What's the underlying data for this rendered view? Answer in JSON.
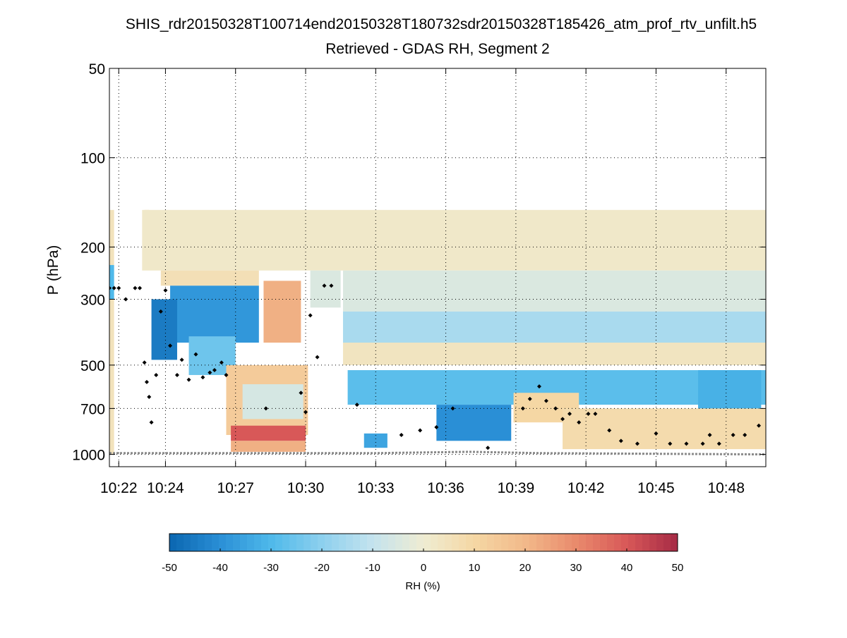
{
  "chart_data": {
    "type": "heatmap",
    "title": "SHIS_rdr20150328T100714end20150328T180732sdr20150328T185426_atm_prof_rtv_unfilt.h5",
    "subtitle": "Retrieved - GDAS RH, Segment 2",
    "xlabel": "",
    "ylabel": "P (hPa)",
    "y_scale": "log",
    "y_reversed": true,
    "ylim": [
      50,
      1100
    ],
    "y_ticks": [
      50,
      100,
      200,
      300,
      500,
      700,
      1000
    ],
    "y_tick_labels": [
      "50",
      "100",
      "200",
      "300",
      "500",
      "700",
      "1000"
    ],
    "x_unit": "minutes after 10:00",
    "xlim": [
      21.6,
      49.7
    ],
    "x_ticks": [
      22,
      24,
      27,
      30,
      33,
      36,
      39,
      42,
      45,
      48
    ],
    "x_tick_labels": [
      "10:22",
      "10:24",
      "10:27",
      "10:30",
      "10:33",
      "10:36",
      "10:39",
      "10:42",
      "10:45",
      "10:48"
    ],
    "grid": true,
    "colorbar": {
      "label": "RH (%)",
      "min": -50,
      "max": 50,
      "ticks": [
        -50,
        -40,
        -30,
        -20,
        -10,
        0,
        10,
        20,
        30,
        40,
        50
      ],
      "tick_labels": [
        "-50",
        "-40",
        "-30",
        "-20",
        "-10",
        "0",
        "10",
        "20",
        "30",
        "40",
        "50"
      ],
      "colors": [
        "#0b66b0",
        "#2a8fd6",
        "#4fb9ea",
        "#8dd0ee",
        "#c4e3ee",
        "#efecd2",
        "#f5d7a4",
        "#f2b98a",
        "#e98a6c",
        "#d85858",
        "#a52a45"
      ]
    },
    "regions": [
      {
        "x": [
          21.6,
          21.8
        ],
        "p": [
          150,
          1000
        ],
        "rh": 5
      },
      {
        "x": [
          21.6,
          21.8
        ],
        "p": [
          230,
          300
        ],
        "rh": -30
      },
      {
        "x": [
          23.1,
          23.3
        ],
        "p": [
          150,
          210
        ],
        "rh": 8
      },
      {
        "x": [
          23.0,
          49.7
        ],
        "p": [
          150,
          240
        ],
        "rh": 2
      },
      {
        "x": [
          23.8,
          28.0
        ],
        "p": [
          240,
          270
        ],
        "rh": 6
      },
      {
        "x": [
          24.2,
          28.0
        ],
        "p": [
          270,
          420
        ],
        "rh": -38
      },
      {
        "x": [
          23.4,
          24.5
        ],
        "p": [
          300,
          480
        ],
        "rh": -45
      },
      {
        "x": [
          25.0,
          27.0
        ],
        "p": [
          400,
          540
        ],
        "rh": -25
      },
      {
        "x": [
          26.6,
          30.1
        ],
        "p": [
          500,
          860
        ],
        "rh": 14
      },
      {
        "x": [
          27.3,
          29.9
        ],
        "p": [
          580,
          760
        ],
        "rh": -6
      },
      {
        "x": [
          26.8,
          30.0
        ],
        "p": [
          800,
          900
        ],
        "rh": 40
      },
      {
        "x": [
          26.8,
          30.0
        ],
        "p": [
          900,
          980
        ],
        "rh": 22
      },
      {
        "x": [
          28.2,
          29.8
        ],
        "p": [
          260,
          420
        ],
        "rh": 22
      },
      {
        "x": [
          30.2,
          31.5
        ],
        "p": [
          240,
          320
        ],
        "rh": -5
      },
      {
        "x": [
          31.6,
          49.7
        ],
        "p": [
          240,
          330
        ],
        "rh": -5
      },
      {
        "x": [
          31.6,
          49.7
        ],
        "p": [
          330,
          420
        ],
        "rh": -15
      },
      {
        "x": [
          31.6,
          49.7
        ],
        "p": [
          420,
          500
        ],
        "rh": 4
      },
      {
        "x": [
          31.8,
          49.7
        ],
        "p": [
          520,
          680
        ],
        "rh": -28
      },
      {
        "x": [
          32.5,
          33.5
        ],
        "p": [
          850,
          950
        ],
        "rh": -35
      },
      {
        "x": [
          35.6,
          38.8
        ],
        "p": [
          680,
          900
        ],
        "rh": -40
      },
      {
        "x": [
          38.9,
          41.7
        ],
        "p": [
          620,
          780
        ],
        "rh": 10
      },
      {
        "x": [
          41.0,
          49.7
        ],
        "p": [
          700,
          960
        ],
        "rh": 8
      },
      {
        "x": [
          46.8,
          49.5
        ],
        "p": [
          520,
          700
        ],
        "rh": -32
      }
    ],
    "markers": {
      "black_diamonds": [
        {
          "x": 21.6,
          "p": 275
        },
        {
          "x": 21.8,
          "p": 275
        },
        {
          "x": 22.0,
          "p": 275
        },
        {
          "x": 22.3,
          "p": 300
        },
        {
          "x": 22.7,
          "p": 275
        },
        {
          "x": 22.9,
          "p": 275
        },
        {
          "x": 23.1,
          "p": 490
        },
        {
          "x": 23.2,
          "p": 570
        },
        {
          "x": 23.3,
          "p": 640
        },
        {
          "x": 23.4,
          "p": 780
        },
        {
          "x": 23.6,
          "p": 540
        },
        {
          "x": 23.8,
          "p": 330
        },
        {
          "x": 24.0,
          "p": 280
        },
        {
          "x": 24.2,
          "p": 430
        },
        {
          "x": 24.5,
          "p": 540
        },
        {
          "x": 24.7,
          "p": 480
        },
        {
          "x": 25.0,
          "p": 560
        },
        {
          "x": 25.3,
          "p": 460
        },
        {
          "x": 25.6,
          "p": 550
        },
        {
          "x": 25.9,
          "p": 530
        },
        {
          "x": 26.1,
          "p": 520
        },
        {
          "x": 26.4,
          "p": 490
        },
        {
          "x": 26.6,
          "p": 540
        },
        {
          "x": 28.3,
          "p": 700
        },
        {
          "x": 29.8,
          "p": 620
        },
        {
          "x": 30.0,
          "p": 720
        },
        {
          "x": 30.2,
          "p": 340
        },
        {
          "x": 30.5,
          "p": 470
        },
        {
          "x": 30.8,
          "p": 270
        },
        {
          "x": 31.1,
          "p": 270
        },
        {
          "x": 32.2,
          "p": 680
        },
        {
          "x": 34.1,
          "p": 860
        },
        {
          "x": 34.9,
          "p": 830
        },
        {
          "x": 35.6,
          "p": 810
        },
        {
          "x": 36.3,
          "p": 700
        },
        {
          "x": 37.8,
          "p": 950
        },
        {
          "x": 39.3,
          "p": 700
        },
        {
          "x": 39.6,
          "p": 650
        },
        {
          "x": 40.0,
          "p": 590
        },
        {
          "x": 40.3,
          "p": 660
        },
        {
          "x": 40.7,
          "p": 700
        },
        {
          "x": 41.0,
          "p": 760
        },
        {
          "x": 41.3,
          "p": 730
        },
        {
          "x": 41.7,
          "p": 780
        },
        {
          "x": 42.1,
          "p": 730
        },
        {
          "x": 42.4,
          "p": 730
        },
        {
          "x": 43.0,
          "p": 830
        },
        {
          "x": 43.5,
          "p": 900
        },
        {
          "x": 44.2,
          "p": 920
        },
        {
          "x": 45.0,
          "p": 850
        },
        {
          "x": 45.6,
          "p": 920
        },
        {
          "x": 46.3,
          "p": 920
        },
        {
          "x": 47.0,
          "p": 920
        },
        {
          "x": 47.3,
          "p": 860
        },
        {
          "x": 47.7,
          "p": 920
        },
        {
          "x": 48.3,
          "p": 860
        },
        {
          "x": 48.8,
          "p": 860
        },
        {
          "x": 49.4,
          "p": 800
        }
      ],
      "surface_pressure_line": {
        "x": [
          21.6,
          33.0,
          37.0,
          40.0,
          49.7
        ],
        "p": [
          990,
          990,
          980,
          990,
          1000
        ]
      }
    }
  }
}
